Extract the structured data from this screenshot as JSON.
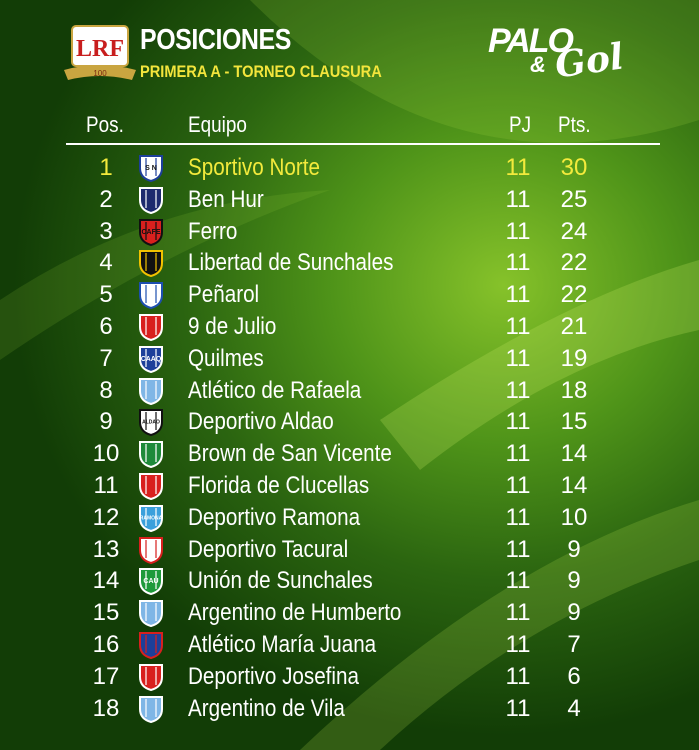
{
  "header": {
    "logo": {
      "text": "LRF",
      "sub": "100"
    },
    "title": "POSICIONES",
    "subtitle": "PRIMERA A - TORNEO CLAUSURA",
    "brand": {
      "word1": "PALO",
      "amp": "&",
      "word2": "Gol"
    }
  },
  "table": {
    "columns": {
      "pos": "Pos.",
      "team": "Equipo",
      "pj": "PJ",
      "pts": "Pts."
    },
    "rows": [
      {
        "pos": 1,
        "team": "Sportivo Norte",
        "pj": 11,
        "pts": 30,
        "badge_colors": [
          "#ffffff",
          "#1d3f9a"
        ],
        "badge_text": "S N"
      },
      {
        "pos": 2,
        "team": "Ben Hur",
        "pj": 11,
        "pts": 25,
        "badge_colors": [
          "#1d2a6e",
          "#ffffff"
        ]
      },
      {
        "pos": 3,
        "team": "Ferro",
        "pj": 11,
        "pts": 24,
        "badge_colors": [
          "#d8201e",
          "#111111"
        ],
        "badge_text": "CAFE"
      },
      {
        "pos": 4,
        "team": "Libertad de Sunchales",
        "pj": 11,
        "pts": 22,
        "badge_colors": [
          "#111111",
          "#f2c200"
        ]
      },
      {
        "pos": 5,
        "team": "Peñarol",
        "pj": 11,
        "pts": 22,
        "badge_colors": [
          "#ffffff",
          "#1d4fb0"
        ]
      },
      {
        "pos": 6,
        "team": "9 de Julio",
        "pj": 11,
        "pts": 21,
        "badge_colors": [
          "#d8201e",
          "#ffffff"
        ]
      },
      {
        "pos": 7,
        "team": "Quilmes",
        "pj": 11,
        "pts": 19,
        "badge_colors": [
          "#1d3f9a",
          "#ffffff"
        ],
        "badge_text": "CAAQ"
      },
      {
        "pos": 8,
        "team": "Atlético de Rafaela",
        "pj": 11,
        "pts": 18,
        "badge_colors": [
          "#7fb6e6",
          "#ffffff"
        ]
      },
      {
        "pos": 9,
        "team": "Deportivo Aldao",
        "pj": 11,
        "pts": 15,
        "badge_colors": [
          "#ffffff",
          "#111111"
        ],
        "badge_text": "ALDAO"
      },
      {
        "pos": 10,
        "team": "Brown de San Vicente",
        "pj": 11,
        "pts": 14,
        "badge_colors": [
          "#1e8a3a",
          "#ffffff"
        ]
      },
      {
        "pos": 11,
        "team": "Florida de Clucellas",
        "pj": 11,
        "pts": 14,
        "badge_colors": [
          "#d8201e",
          "#ffffff"
        ]
      },
      {
        "pos": 12,
        "team": "Deportivo Ramona",
        "pj": 11,
        "pts": 10,
        "badge_colors": [
          "#3aa0dc",
          "#ffffff"
        ],
        "badge_text": "RAMONA"
      },
      {
        "pos": 13,
        "team": "Deportivo Tacural",
        "pj": 11,
        "pts": 9,
        "badge_colors": [
          "#ffffff",
          "#d8201e"
        ]
      },
      {
        "pos": 14,
        "team": "Unión de Sunchales",
        "pj": 11,
        "pts": 9,
        "badge_colors": [
          "#1e9a3a",
          "#ffffff"
        ],
        "badge_text": "CAU"
      },
      {
        "pos": 15,
        "team": "Argentino de Humberto",
        "pj": 11,
        "pts": 9,
        "badge_colors": [
          "#7fb6e6",
          "#ffffff"
        ]
      },
      {
        "pos": 16,
        "team": "Atlético María Juana",
        "pj": 11,
        "pts": 7,
        "badge_colors": [
          "#1d3f9a",
          "#d8201e"
        ]
      },
      {
        "pos": 17,
        "team": "Deportivo Josefina",
        "pj": 11,
        "pts": 6,
        "badge_colors": [
          "#d8201e",
          "#ffffff"
        ]
      },
      {
        "pos": 18,
        "team": "Argentino de Vila",
        "pj": 11,
        "pts": 4,
        "badge_colors": [
          "#7fb6e6",
          "#ffffff"
        ]
      }
    ]
  }
}
